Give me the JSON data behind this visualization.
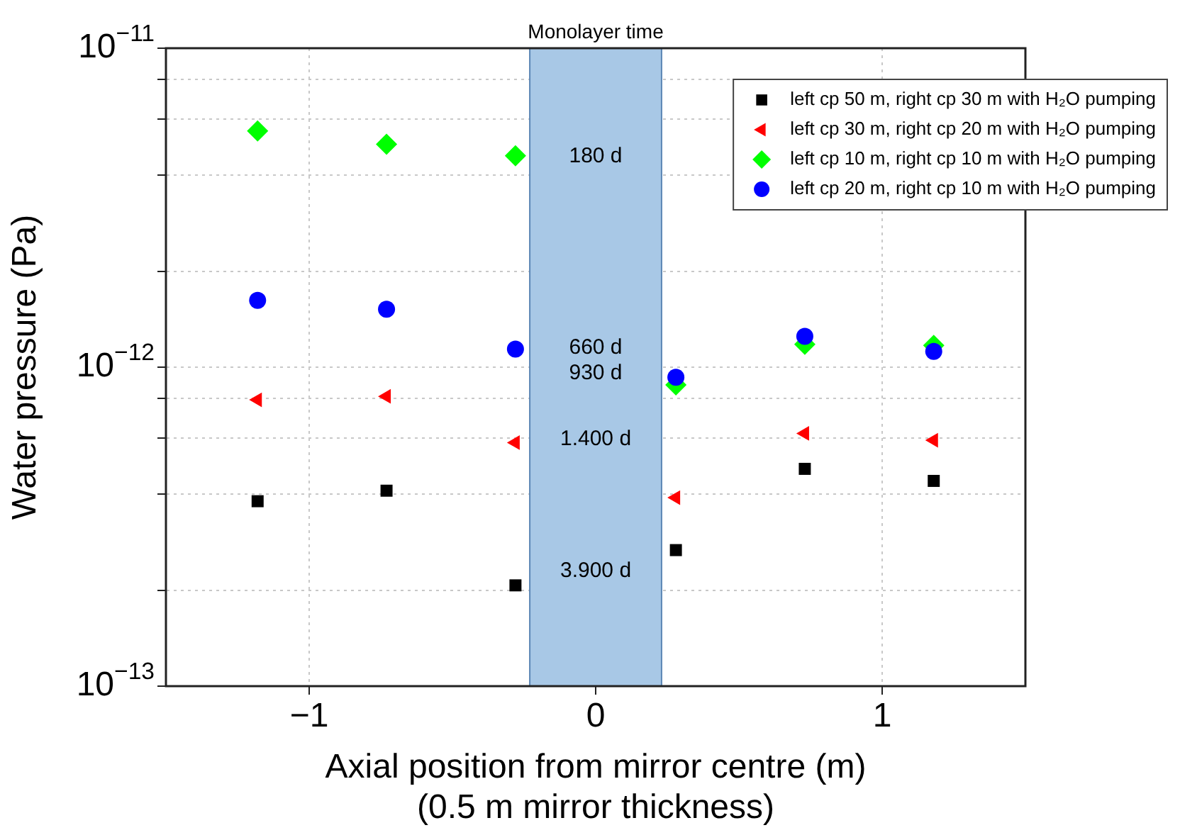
{
  "chart_data": {
    "type": "scatter",
    "xlabel": "Axial position from mirror centre (m)\n(0.5 m mirror thickness)",
    "ylabel": "Water pressure (Pa)",
    "x": [
      -1.18,
      -0.73,
      -0.28,
      0.28,
      0.73,
      1.18
    ],
    "series": [
      {
        "name": "left cp 50 m, right cp 30 m with H₂O pumping",
        "color": "#000000",
        "marker": "square",
        "values": [
          3.8e-13,
          4.1e-13,
          2.07e-13,
          2.67e-13,
          4.8e-13,
          4.4e-13
        ]
      },
      {
        "name": "left cp 30 m, right cp 20 m with H₂O pumping",
        "color": "#ff0000",
        "marker": "triangle",
        "values": [
          7.9e-13,
          8.1e-13,
          5.8e-13,
          3.9e-13,
          6.2e-13,
          5.9e-13
        ]
      },
      {
        "name": "left cp 10 m, right cp 10 m with H₂O pumping",
        "color": "#00ff00",
        "marker": "diamond",
        "values": [
          5.5e-12,
          5e-12,
          4.6e-12,
          8.8e-13,
          1.18e-12,
          1.17e-12
        ]
      },
      {
        "name": "left cp 20 m, right cp 10 m with H₂O pumping",
        "color": "#0000ff",
        "marker": "circle",
        "values": [
          1.62e-12,
          1.52e-12,
          1.14e-12,
          9.3e-13,
          1.25e-12,
          1.12e-12
        ]
      }
    ],
    "xlim": [
      -1.5,
      1.5
    ],
    "xticks": [
      -1,
      0,
      1
    ],
    "ylim": [
      1e-13,
      1e-11
    ],
    "yticks": [
      {
        "value": 1e-13,
        "label": "10$^{−13}$"
      },
      {
        "value": 2e-13,
        "label": null
      },
      {
        "value": 4e-13,
        "label": null
      },
      {
        "value": 6e-13,
        "label": null
      },
      {
        "value": 8e-13,
        "label": null
      },
      {
        "value": 1e-12,
        "label": "10$^{−12}$"
      },
      {
        "value": 2e-12,
        "label": null
      },
      {
        "value": 4e-12,
        "label": null
      },
      {
        "value": 6e-12,
        "label": null
      },
      {
        "value": 8e-12,
        "label": null
      },
      {
        "value": 1e-11,
        "label": "10$^{−11}$"
      }
    ],
    "log": "y",
    "grid": true,
    "legend": "top right",
    "bands": [
      {
        "axis": "x",
        "from": -0.23,
        "to": 0.23,
        "label": "Monolayer time",
        "color": "#a8c8e6"
      }
    ],
    "annotations": [
      "180 d",
      "660 d",
      "930 d",
      "1.400 d",
      "3.900 d"
    ]
  }
}
